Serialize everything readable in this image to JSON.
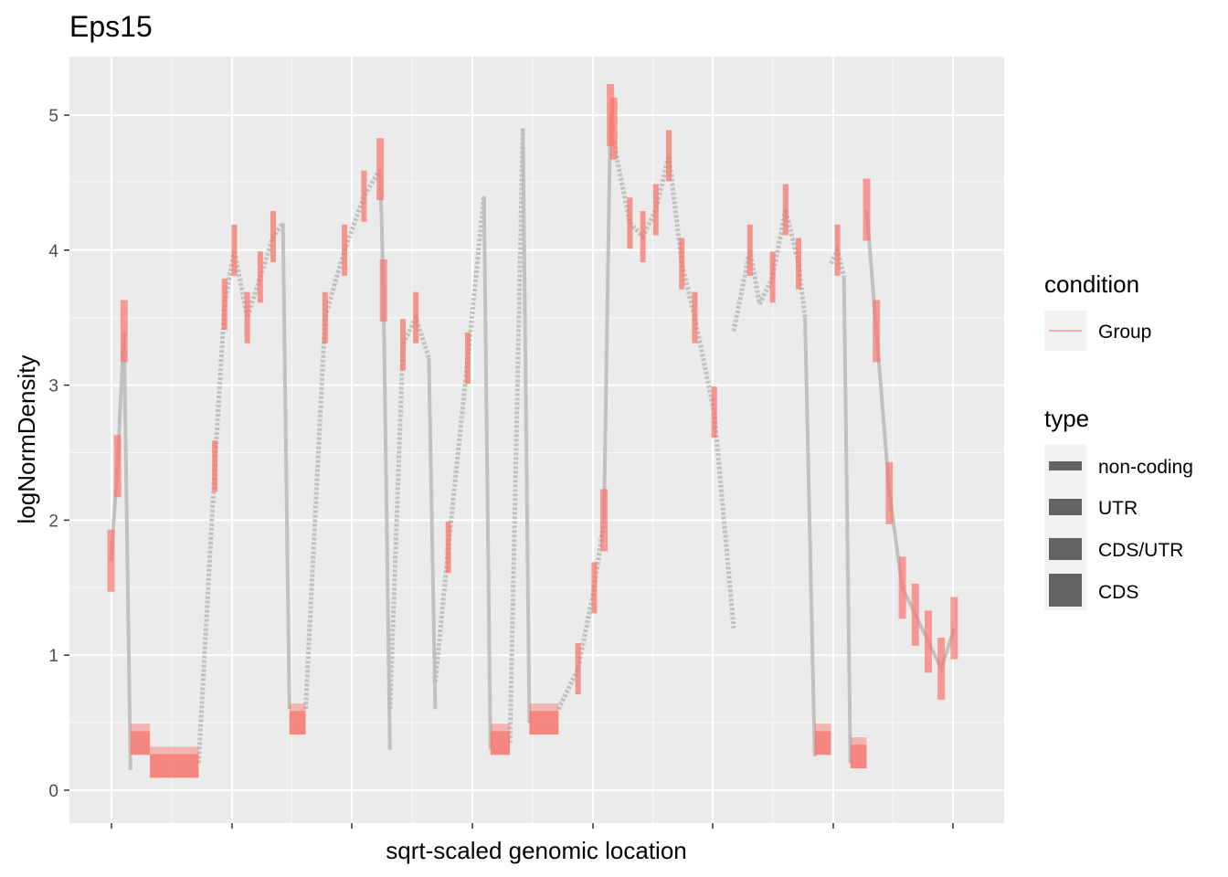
{
  "chart_data": {
    "type": "line",
    "title": "Eps15",
    "xlabel": "sqrt-scaled genomic location",
    "ylabel": "logNormDensity",
    "ylim": [
      -0.25,
      5.5
    ],
    "yticks": [
      "0",
      "1",
      "2",
      "3",
      "4",
      "5"
    ],
    "grid": true,
    "legend_position": "right",
    "colors": {
      "panel": "#ebebeb",
      "grid": "#ffffff",
      "condition": "#f8766d",
      "trace": "#bdbdbd",
      "type": "#636363"
    },
    "legends": {
      "condition": {
        "title": "condition",
        "items": [
          "Group"
        ]
      },
      "type": {
        "title": "type",
        "items": [
          "non-coding",
          "UTR",
          "CDS/UTR",
          "CDS"
        ]
      }
    },
    "series": [
      {
        "name": "Group",
        "segments": [
          {
            "x": [
              0.0,
              0.01,
              0.02
            ],
            "y": [
              1.7,
              2.4,
              3.4
            ],
            "kind": "exon"
          },
          {
            "x": [
              0.02,
              0.03
            ],
            "y": [
              3.4,
              0.15
            ],
            "kind": "drop"
          },
          {
            "x": [
              0.03,
              0.06
            ],
            "y": [
              0.35,
              0.35
            ],
            "kind": "exon"
          },
          {
            "x": [
              0.06,
              0.135
            ],
            "y": [
              0.18,
              0.18
            ],
            "kind": "exon"
          },
          {
            "x": [
              0.135,
              0.16,
              0.175,
              0.19,
              0.21,
              0.23,
              0.25,
              0.265
            ],
            "y": [
              0.2,
              2.4,
              3.6,
              4.0,
              3.5,
              3.8,
              4.1,
              4.2
            ],
            "kind": "ramp"
          },
          {
            "x": [
              0.265,
              0.275
            ],
            "y": [
              4.2,
              0.6
            ],
            "kind": "drop"
          },
          {
            "x": [
              0.275,
              0.3
            ],
            "y": [
              0.5,
              0.5
            ],
            "kind": "exon"
          },
          {
            "x": [
              0.3,
              0.33,
              0.36,
              0.39,
              0.415
            ],
            "y": [
              0.6,
              3.5,
              4.0,
              4.4,
              4.6
            ],
            "kind": "ramp"
          },
          {
            "x": [
              0.415,
              0.42
            ],
            "y": [
              4.6,
              3.7
            ],
            "kind": "exon"
          },
          {
            "x": [
              0.42,
              0.43
            ],
            "y": [
              3.7,
              0.3
            ],
            "kind": "drop"
          },
          {
            "x": [
              0.43,
              0.45,
              0.47,
              0.49
            ],
            "y": [
              0.6,
              3.3,
              3.5,
              3.2
            ],
            "kind": "ramp"
          },
          {
            "x": [
              0.49,
              0.5
            ],
            "y": [
              3.2,
              0.6
            ],
            "kind": "drop"
          },
          {
            "x": [
              0.5,
              0.52,
              0.55,
              0.575
            ],
            "y": [
              0.8,
              1.8,
              3.2,
              4.4
            ],
            "kind": "ramp"
          },
          {
            "x": [
              0.575,
              0.585
            ],
            "y": [
              4.4,
              0.3
            ],
            "kind": "drop"
          },
          {
            "x": [
              0.585,
              0.615
            ],
            "y": [
              0.35,
              0.35
            ],
            "kind": "exon"
          },
          {
            "x": [
              0.615,
              0.635
            ],
            "y": [
              0.35,
              4.9
            ],
            "kind": "ramp"
          },
          {
            "x": [
              0.635,
              0.645
            ],
            "y": [
              4.9,
              0.5
            ],
            "kind": "drop"
          },
          {
            "x": [
              0.645,
              0.69
            ],
            "y": [
              0.5,
              0.5
            ],
            "kind": "exon"
          },
          {
            "x": [
              0.69,
              0.72,
              0.745,
              0.76
            ],
            "y": [
              0.6,
              0.9,
              1.5,
              2.0
            ],
            "kind": "ramp"
          },
          {
            "x": [
              0.76,
              0.77,
              0.775
            ],
            "y": [
              2.0,
              5.0,
              4.9
            ],
            "kind": "exon"
          },
          {
            "x": [
              0.775,
              0.8,
              0.82,
              0.84,
              0.86,
              0.88,
              0.9,
              0.93,
              0.96
            ],
            "y": [
              4.8,
              4.2,
              4.1,
              4.3,
              4.7,
              3.9,
              3.5,
              2.8,
              1.2
            ],
            "kind": "ramp"
          },
          {
            "x": [
              0.96,
              0.985,
              1.0
            ],
            "y": [
              3.4,
              4.0,
              3.6
            ],
            "kind": "ramp"
          },
          {
            "x": [
              1.0,
              1.02,
              1.04,
              1.06,
              1.07
            ],
            "y": [
              3.6,
              3.8,
              4.3,
              3.9,
              3.5
            ],
            "kind": "ramp"
          },
          {
            "x": [
              1.07,
              1.085
            ],
            "y": [
              3.5,
              0.25
            ],
            "kind": "drop"
          },
          {
            "x": [
              1.085,
              1.11
            ],
            "y": [
              0.35,
              0.35
            ],
            "kind": "exon"
          },
          {
            "x": [
              1.11,
              1.12,
              1.13
            ],
            "y": [
              3.9,
              4.0,
              3.8
            ],
            "kind": "ramp"
          },
          {
            "x": [
              1.13,
              1.14
            ],
            "y": [
              3.8,
              0.2
            ],
            "kind": "drop"
          },
          {
            "x": [
              1.14,
              1.165
            ],
            "y": [
              0.25,
              0.25
            ],
            "kind": "exon"
          },
          {
            "x": [
              1.165,
              1.18,
              1.2,
              1.22,
              1.24,
              1.26,
              1.28,
              1.3
            ],
            "y": [
              4.3,
              3.4,
              2.2,
              1.5,
              1.3,
              1.1,
              0.9,
              1.2
            ],
            "kind": "exon"
          }
        ]
      }
    ]
  }
}
